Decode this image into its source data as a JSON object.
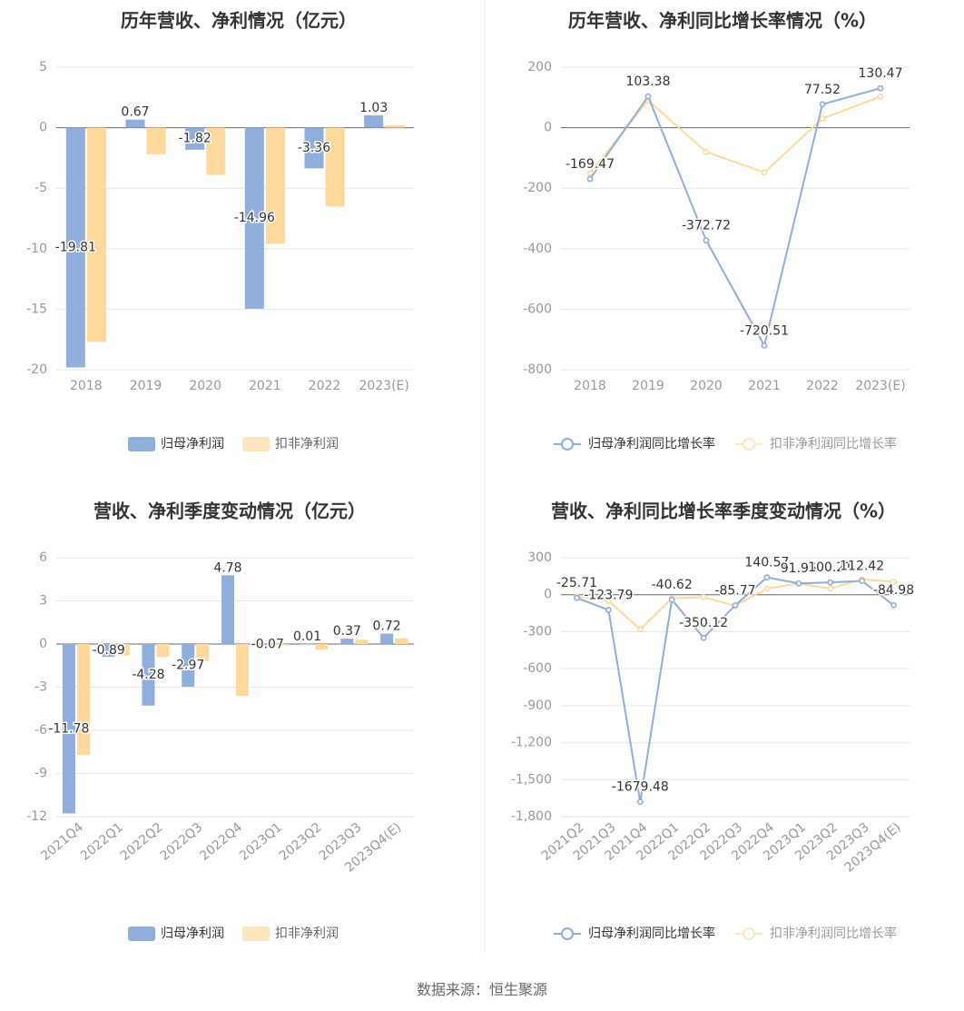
{
  "colors": {
    "blue": "#8FAEDB",
    "orange": "#FFD99B",
    "grid": "#E6E6E6",
    "axis": "#999999",
    "text": "#333333",
    "tick": "#999999"
  },
  "source": "数据来源：恒生聚源",
  "chart_data": [
    {
      "type": "bar",
      "title": "历年营收、净利情况（亿元）",
      "categories": [
        "2018",
        "2019",
        "2020",
        "2021",
        "2022",
        "2023(E)"
      ],
      "ylim": [
        -20,
        5
      ],
      "yticks": [
        "5",
        "0",
        "-5",
        "-10",
        "-15",
        "-20"
      ],
      "grid": true,
      "legend": "bottom-center",
      "series": [
        {
          "name": "归母净利润",
          "values": [
            -19.81,
            0.67,
            -1.82,
            -14.96,
            -3.36,
            1.03
          ],
          "labels": [
            "-19.81",
            "0.67",
            "-1.82",
            "-14.96",
            "-3.36",
            "1.03"
          ]
        },
        {
          "name": "扣非净利润",
          "values": [
            -17.7,
            -2.2,
            -3.9,
            -9.6,
            -6.5,
            0.2
          ]
        }
      ]
    },
    {
      "type": "line",
      "title": "历年营收、净利同比增长率情况（%）",
      "categories": [
        "2018",
        "2019",
        "2020",
        "2021",
        "2022",
        "2023(E)"
      ],
      "ylim": [
        -800,
        200
      ],
      "yticks": [
        "200",
        "0",
        "-200",
        "-400",
        "-600",
        "-800"
      ],
      "grid": true,
      "legend": "bottom-center",
      "series": [
        {
          "name": "归母净利润同比增长率",
          "values": [
            -169.47,
            103.38,
            -372.72,
            -720.51,
            77.52,
            130.47
          ],
          "labels": [
            "-169.47",
            "103.38",
            "-372.72",
            "-720.51",
            "77.52",
            "130.47"
          ]
        },
        {
          "name": "扣非净利润同比增长率",
          "values": [
            -150,
            90,
            -80,
            -148,
            30,
            103
          ]
        }
      ]
    },
    {
      "type": "bar",
      "title": "营收、净利季度变动情况（亿元）",
      "categories": [
        "2021Q4",
        "2022Q1",
        "2022Q2",
        "2022Q3",
        "2022Q4",
        "2023Q1",
        "2023Q2",
        "2023Q3",
        "2023Q4(E)"
      ],
      "ylim": [
        -12,
        6
      ],
      "yticks": [
        "6",
        "3",
        "0",
        "-3",
        "-6",
        "-9",
        "-12"
      ],
      "grid": true,
      "legend": "bottom-center",
      "series": [
        {
          "name": "归母净利润",
          "values": [
            -11.78,
            -0.89,
            -4.28,
            -2.97,
            4.78,
            -0.07,
            0.01,
            0.37,
            0.72
          ],
          "labels": [
            "-11.78",
            "-0.89",
            "-4.28",
            "-2.97",
            "4.78",
            "-0.07",
            "0.01",
            "0.37",
            "0.72"
          ]
        },
        {
          "name": "扣非净利润",
          "values": [
            -7.7,
            -0.8,
            -0.9,
            -1.2,
            -3.6,
            -0.1,
            -0.4,
            0.3,
            0.4
          ]
        }
      ]
    },
    {
      "type": "line",
      "title": "营收、净利同比增长率季度变动情况（%）",
      "categories": [
        "2021Q2",
        "2021Q3",
        "2021Q4",
        "2022Q1",
        "2022Q2",
        "2022Q3",
        "2022Q4",
        "2023Q1",
        "2023Q2",
        "2023Q3",
        "2023Q4(E)"
      ],
      "ylim": [
        -1800,
        300
      ],
      "yticks": [
        "300",
        "0",
        "-300",
        "-600",
        "-900",
        "-1,200",
        "-1,500",
        "-1,800"
      ],
      "grid": true,
      "legend": "bottom-center",
      "series": [
        {
          "name": "归母净利润同比增长率",
          "values": [
            -25.71,
            -123.79,
            -1679.48,
            -40.62,
            -350.12,
            -85.77,
            140.57,
            91.95,
            100.21,
            112.42,
            -84.98
          ],
          "labels": [
            "-25.71",
            "-123.79",
            "-1679.48",
            "-40.62",
            "-350.12",
            "-85.77",
            "140.57",
            "91.95",
            "100.21",
            "112.42",
            "-84.98"
          ]
        },
        {
          "name": "扣非净利润同比增长率",
          "values": [
            -15,
            -50,
            -280,
            -30,
            -20,
            -90,
            50,
            90,
            50,
            125,
            105
          ]
        }
      ]
    }
  ]
}
